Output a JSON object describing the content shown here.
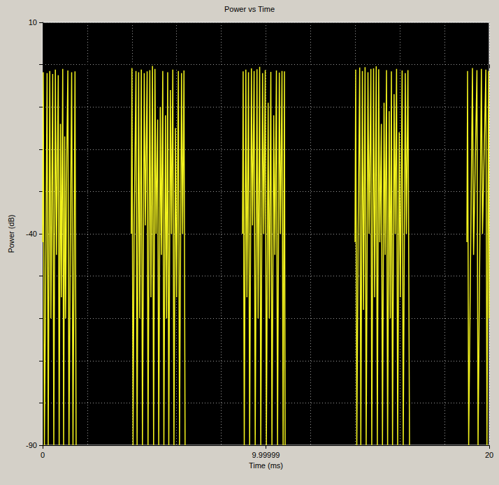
{
  "chart_data": {
    "type": "line",
    "title": "Power vs Time",
    "x_label": "Time (ms)",
    "y_label": "Power (dB)",
    "xlim": [
      0,
      20
    ],
    "ylim": [
      -90,
      10
    ],
    "xticks": [
      0,
      9.99999,
      20
    ],
    "yticks": [
      -90,
      -40,
      10
    ],
    "grid": true,
    "series": [
      {
        "color": "#f2f21e",
        "x": [
          0,
          0.03,
          0.08,
          0.13,
          0.2,
          0.25,
          0.32,
          0.37,
          0.45,
          0.5,
          0.57,
          0.62,
          0.7,
          0.74,
          0.8,
          0.84,
          0.9,
          0.94,
          0.99,
          1.03,
          1.08,
          1.13,
          1.18,
          1.25,
          1.3,
          1.36,
          1.45,
          1.5,
          2.7,
          3.97,
          4,
          4.05,
          4.1,
          4.18,
          4.23,
          4.3,
          4.35,
          4.42,
          4.47,
          4.55,
          4.6,
          4.68,
          4.72,
          4.8,
          4.85,
          4.92,
          4.97,
          5.03,
          5.08,
          5.15,
          5.2,
          5.27,
          5.32,
          5.38,
          5.43,
          5.5,
          5.55,
          5.6,
          5.65,
          5.72,
          5.77,
          5.83,
          5.88,
          5.95,
          6,
          6.08,
          6.13,
          6.22,
          6.27,
          6.33,
          6.38,
          7.6,
          8.95,
          8.98,
          9.03,
          9.1,
          9.15,
          9.22,
          9.27,
          9.35,
          9.4,
          9.47,
          9.52,
          9.6,
          9.65,
          9.72,
          9.77,
          9.85,
          9.9,
          9.97,
          10.02,
          10.1,
          10.15,
          10.22,
          10.27,
          10.35,
          10.4,
          10.47,
          10.52,
          10.6,
          10.65,
          10.72,
          10.77,
          10.83,
          10.86,
          12.4,
          13.99,
          14.02,
          14.07,
          14.13,
          14.2,
          14.25,
          14.32,
          14.37,
          14.44,
          14.49,
          14.57,
          14.62,
          14.7,
          14.74,
          14.82,
          14.87,
          14.94,
          14.99,
          15.05,
          15.1,
          15.17,
          15.22,
          15.29,
          15.34,
          15.4,
          15.45,
          15.52,
          15.57,
          15.62,
          15.67,
          15.74,
          15.79,
          15.85,
          15.9,
          15.97,
          16.02,
          16.1,
          16.15,
          16.24,
          16.29,
          16.36,
          16.43,
          17.7,
          19,
          19.03,
          19.08,
          19.25,
          19.3,
          19.45,
          19.5,
          19.65,
          19.7,
          19.85,
          19.9,
          19.97,
          20
        ],
        "values": [
          -42,
          -1.8,
          -90,
          -55,
          -2,
          -90,
          -1.5,
          -60,
          -2.2,
          -90,
          -1.2,
          -45,
          -2.5,
          -90,
          -14,
          -55,
          -1,
          -90,
          -17,
          -60,
          -22,
          -1.4,
          -90,
          -35,
          -1.8,
          -90,
          -1.6,
          -90,
          null,
          -40,
          -0.8,
          -90,
          -38,
          -1.5,
          -90,
          -1.8,
          -60,
          -1.2,
          -90,
          -2,
          -38,
          -1.6,
          -90,
          -1.3,
          -55,
          -0.3,
          -90,
          -1,
          -40,
          -13,
          -90,
          -10,
          -45,
          -1.5,
          -90,
          -12,
          -60,
          -1.8,
          -90,
          -6,
          -40,
          -1.2,
          -90,
          -15,
          -55,
          -1.5,
          -90,
          -2,
          -40,
          -1.4,
          -90,
          null,
          -40,
          -1.6,
          -90,
          -1.2,
          -55,
          -1.8,
          -90,
          -0.9,
          -38,
          -1.5,
          -90,
          -1.1,
          -60,
          -0.5,
          -90,
          -2,
          -40,
          -1.3,
          -90,
          -9,
          -60,
          -1.7,
          -90,
          -12,
          -45,
          -1.4,
          -90,
          -1.9,
          -40,
          -1.5,
          -90,
          -1.6,
          -90,
          null,
          -42,
          -1.2,
          -90,
          -40,
          -0.7,
          -90,
          -1.5,
          -58,
          -0.6,
          -90,
          -1.8,
          -40,
          -1,
          -90,
          -0.9,
          -55,
          -0.4,
          -90,
          -1.1,
          -42,
          -14,
          -90,
          -9,
          -45,
          -1.3,
          -90,
          -11,
          -60,
          -1.6,
          -90,
          -7,
          -40,
          -1,
          -90,
          -16,
          -55,
          -1.4,
          -90,
          -2,
          -40,
          -1.3,
          -90,
          null,
          -42,
          -1.5,
          -90,
          -0.8,
          -45,
          -1.3,
          -90,
          -1,
          -40,
          -1.2,
          -90,
          -1.5,
          -60
        ]
      }
    ]
  }
}
